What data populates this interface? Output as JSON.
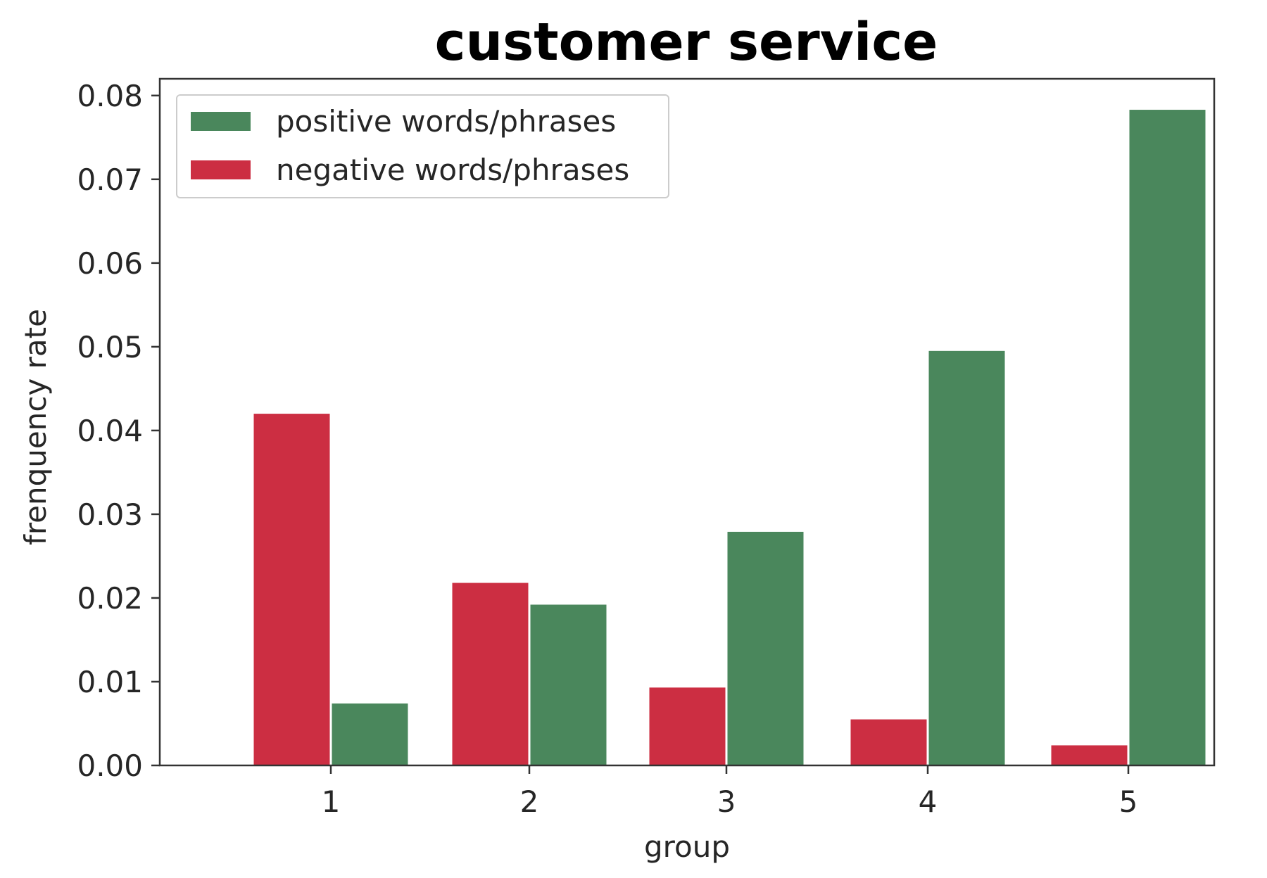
{
  "chart_data": {
    "type": "bar",
    "title": "customer service",
    "xlabel": "group",
    "ylabel": "frenquency rate",
    "categories": [
      "1",
      "2",
      "3",
      "4",
      "5"
    ],
    "ylim": [
      0,
      0.082
    ],
    "yticks": [
      "0.00",
      "0.01",
      "0.02",
      "0.03",
      "0.04",
      "0.05",
      "0.06",
      "0.07",
      "0.08"
    ],
    "series": [
      {
        "name": "positive words/phrases",
        "color": "#4a875c",
        "values": [
          0.0074,
          0.0192,
          0.0279,
          0.0495,
          0.0783
        ]
      },
      {
        "name": "negative words/phrases",
        "color": "#cc2e42",
        "values": [
          0.042,
          0.0218,
          0.0093,
          0.0055,
          0.0024
        ]
      }
    ],
    "legend_position": "upper-left",
    "grid": false
  }
}
